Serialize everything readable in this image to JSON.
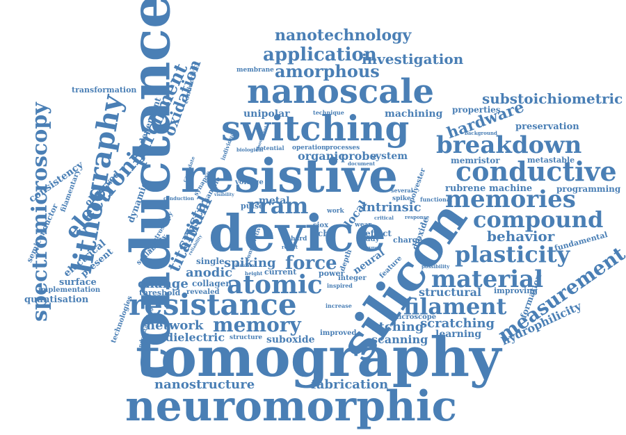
{
  "style": {
    "word_color": "#4a7fb5",
    "background": "#ffffff"
  },
  "words": {
    "tomography": "tomography",
    "neuromorphic": "neuromorphic",
    "conductance": "conductance",
    "resistive": "resistive",
    "device": "device",
    "silicon": "silicon",
    "switching": "switching",
    "nanoscale": "nanoscale",
    "resistance": "resistance",
    "spectromicroscopy": "spectromicroscopy",
    "lithography": "lithography",
    "conductive": "conductive",
    "memories": "memories",
    "compound": "compound",
    "breakdown": "breakdown",
    "material": "material",
    "filament": "filament",
    "plasticity": "plasticity",
    "atomic": "atomic",
    "memory": "memory",
    "measurement": "measurement",
    "nanotechnology": "nanotechnology",
    "application": "application",
    "amorphous": "amorphous",
    "investigation": "investigation",
    "substoichiometric": "substoichiometric",
    "electronic": "electronic",
    "parchment": "parchment",
    "oxidation": "oxidation",
    "rram": "rram",
    "force": "force",
    "network": "network",
    "titanium": "titanium",
    "crystal": "crystal",
    "hardware": "hardware",
    "nanostructure": "nanostructure",
    "fabrication": "fabrication",
    "behavior": "behavior",
    "scratching": "scratching",
    "etching": "etching",
    "scanning": "scanning",
    "learning": "learning",
    "dielectric": "dielectric",
    "suboxide": "suboxide",
    "spiking": "spiking",
    "anodic": "anodic",
    "change": "change",
    "organic": "organic",
    "probe": "probe",
    "intrinsic": "intrinsic",
    "structural": "structural",
    "hydrophilicity": "hydrophilicity",
    "memristor": "memristor",
    "rubrene": "rubrene",
    "machine": "machine",
    "programming": "programming",
    "preservation": "preservation",
    "properties": "properties",
    "machining": "machining",
    "unipolar": "unipolar",
    "system": "system",
    "consistency": "consistency",
    "observed": "observed",
    "dynamic": "dynamic",
    "dependent": "dependent",
    "conductivity": "conductivity",
    "electrical": "electrical",
    "present": "present",
    "surface": "surface",
    "quantisation": "quantisation",
    "implementation": "implementation",
    "semiconductor": "semiconductor",
    "filamentary": "filamentary",
    "transformation": "transformation",
    "membrane": "membrane",
    "technique": "technique",
    "metastable": "metastable",
    "fundamental": "fundamental",
    "formation": "formation",
    "improving": "improving",
    "microscope": "microscope",
    "improved": "improved",
    "structure": "structure",
    "collagen": "collagen",
    "single": "single",
    "threshold": "threshold",
    "revealed": "revealed",
    "technologies": "technologies",
    "understanding": "understanding",
    "scalability": "scalability",
    "spectroscopy": "spectroscopy",
    "metal": "metal",
    "pulse": "pulse",
    "voltage": "voltage",
    "local": "local",
    "neural": "neural",
    "current": "current",
    "power": "power",
    "depth": "depth",
    "integer": "integer",
    "feature": "feature",
    "effect": "effect",
    "charge": "charge",
    "study": "study",
    "dioxide": "dioxide",
    "rich": "rich",
    "siox": "siox",
    "wear": "wear",
    "work": "work",
    "operation": "operation",
    "processes": "processes",
    "document": "document",
    "potential": "potential",
    "biological": "biological",
    "individual": "individual",
    "conduction": "conduction",
    "sample": "sample",
    "synapse": "synapse",
    "conservative": "conservative",
    "increase": "increase",
    "inspired": "inspired",
    "possibility": "possibility",
    "spike": "spike",
    "several": "several",
    "polyester": "polyester",
    "functional": "functional",
    "response": "response",
    "critical": "critical",
    "background": "background",
    "candidate": "candidate",
    "hard": "hard",
    "result": "result",
    "oxygen": "oxygen",
    "height": "height",
    "insulator": "insulator",
    "reliability": "reliability",
    "visibility": "visibility",
    "movement": "movement"
  }
}
